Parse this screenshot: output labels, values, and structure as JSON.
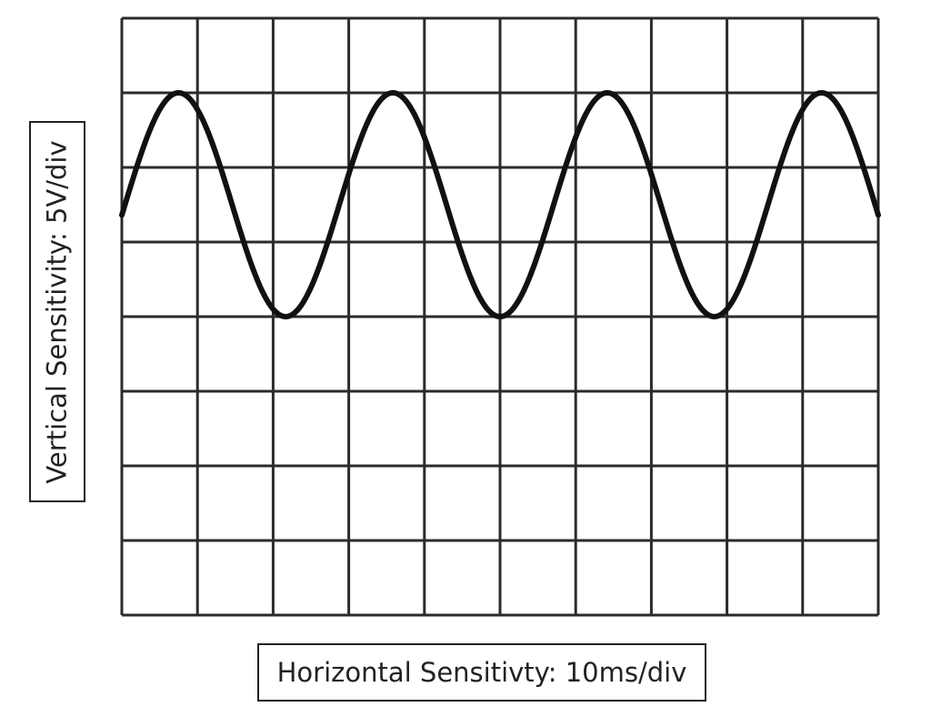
{
  "vertical_label": "Vertical Sensitivity: 5V/div",
  "horizontal_label": "Horizontal Sensitivty: 10ms/div",
  "grid": {
    "horizontal_divisions": 10,
    "vertical_divisions": 8,
    "grid_color": "#2b2b2b",
    "trace_color": "#111111"
  },
  "waveform": {
    "shape": "sine",
    "peak_division": 7,
    "trough_division": 4,
    "cycles_shown": 3.5,
    "peak_times_div": [
      0.75,
      3.55,
      6.4,
      9.25
    ],
    "trough_times_div": [
      2.15,
      4.98,
      7.85
    ]
  }
}
